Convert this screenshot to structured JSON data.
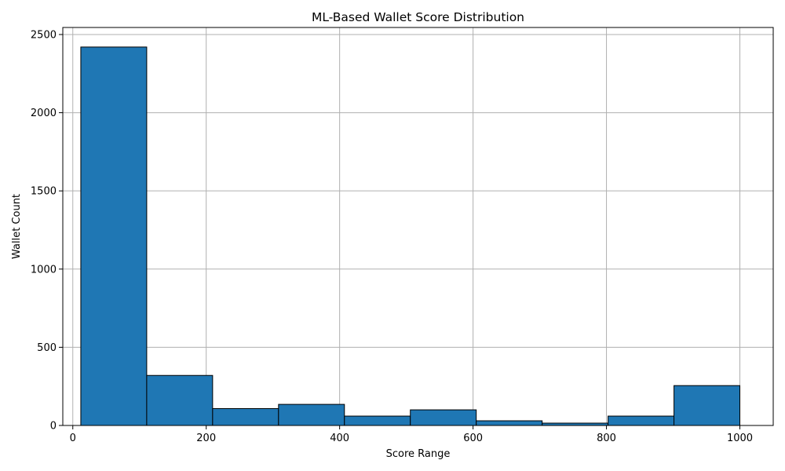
{
  "chart_data": {
    "type": "bar",
    "title": "ML-Based Wallet Score Distribution",
    "xlabel": "Score Range",
    "ylabel": "Wallet Count",
    "xlim": [
      -15,
      1050
    ],
    "ylim": [
      0,
      2545
    ],
    "xticks": [
      0,
      200,
      400,
      600,
      800,
      1000
    ],
    "yticks": [
      0,
      500,
      1000,
      1500,
      2000,
      2500
    ],
    "grid": true,
    "bar_color": "#1f77b4",
    "edge_color": "#000000",
    "bins": [
      {
        "start": 12,
        "end": 110.8,
        "count": 2420
      },
      {
        "start": 110.8,
        "end": 209.6,
        "count": 320
      },
      {
        "start": 209.6,
        "end": 308.4,
        "count": 108
      },
      {
        "start": 308.4,
        "end": 407.2,
        "count": 135
      },
      {
        "start": 407.2,
        "end": 506,
        "count": 60
      },
      {
        "start": 506,
        "end": 604.8,
        "count": 100
      },
      {
        "start": 604.8,
        "end": 703.6,
        "count": 30
      },
      {
        "start": 703.6,
        "end": 802.4,
        "count": 15
      },
      {
        "start": 802.4,
        "end": 901.2,
        "count": 60
      },
      {
        "start": 901.2,
        "end": 1000,
        "count": 255
      }
    ]
  }
}
